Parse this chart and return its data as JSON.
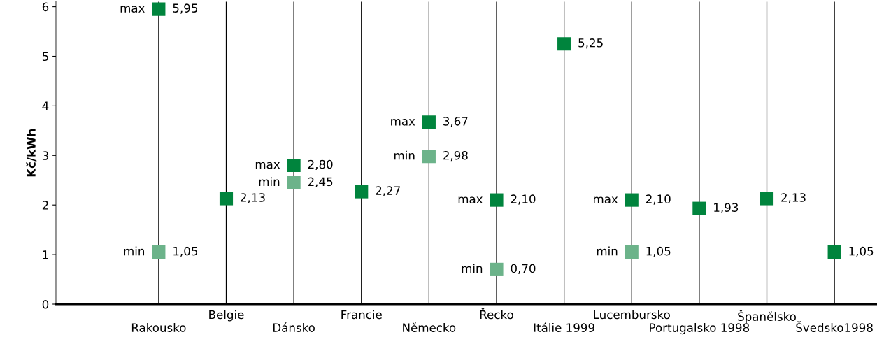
{
  "chart_data": {
    "type": "scatter",
    "ylabel": "Kč/kWh",
    "categories": [
      "Rakousko",
      "Belgie",
      "Dánsko",
      "Francie",
      "Německo",
      "Řecko",
      "Itálie 1999",
      "Lucembursko",
      "Portugalsko 1998",
      "Španělsko",
      "Švedsko1998"
    ],
    "series": [
      {
        "color": "#00843d",
        "values": [
          5.95,
          2.13,
          2.8,
          2.27,
          3.67,
          2.1,
          5.25,
          2.1,
          1.93,
          2.13,
          1.05
        ],
        "value_labels": [
          "5,95",
          "2,13",
          "2,80",
          "2,27",
          "3,67",
          "2,10",
          "5,25",
          "2,10",
          "1,93",
          "2,13",
          "1,05"
        ]
      },
      {
        "color": "#6cb38a",
        "values": [
          1.05,
          null,
          2.45,
          null,
          2.98,
          0.7,
          null,
          1.05,
          null,
          null,
          null
        ],
        "value_labels": [
          "1,05",
          null,
          "2,45",
          null,
          "2,98",
          "0,70",
          null,
          "1,05",
          null,
          null,
          null
        ]
      }
    ],
    "annotations": [
      {
        "text": "max",
        "x": "Rakousko",
        "y": 5.95
      },
      {
        "text": "min",
        "x": "Rakousko",
        "y": 1.05
      },
      {
        "text": "max",
        "x": "Dánsko",
        "y": 2.8
      },
      {
        "text": "min",
        "x": "Dánsko",
        "y": 2.45
      },
      {
        "text": "max",
        "x": "Německo",
        "y": 3.67
      },
      {
        "text": "min",
        "x": "Německo",
        "y": 2.98
      },
      {
        "text": "max",
        "x": "Řecko",
        "y": 2.1
      },
      {
        "text": "min",
        "x": "Řecko",
        "y": 0.7
      },
      {
        "text": "max",
        "x": "Lucembursko",
        "y": 2.1
      },
      {
        "text": "min",
        "x": "Lucembursko",
        "y": 1.05
      }
    ],
    "ylim": [
      0,
      6.1
    ],
    "yticks": [
      0,
      1,
      2,
      3,
      4,
      5,
      6
    ],
    "grid": "x",
    "marker": "square"
  }
}
